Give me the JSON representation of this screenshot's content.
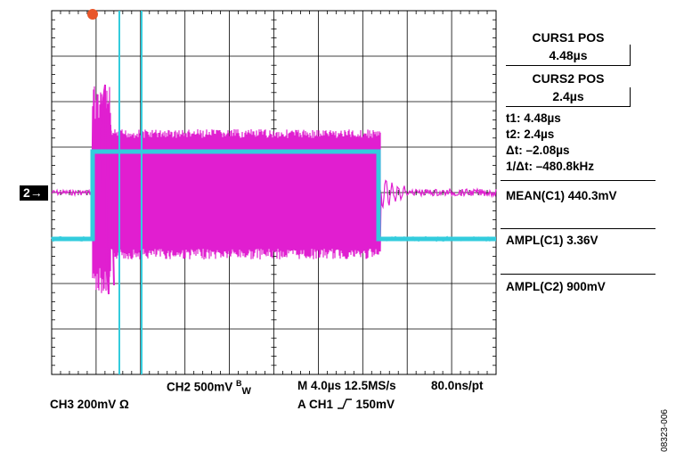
{
  "cursors": {
    "curs1_label": "CURS1 POS",
    "curs1_value": "4.48µs",
    "curs2_label": "CURS2 POS",
    "curs2_value": "2.4µs"
  },
  "measurements": {
    "t1": "t1: 4.48µs",
    "t2": "t2: 2.4µs",
    "delta_t": "Δt: –2.08µs",
    "inv_delta_t": "1/Δt: –480.8kHz",
    "mean_c1": "MEAN(C1)  440.3mV",
    "ampl_c1": "AMPL(C1)  3.36V",
    "ampl_c2": "AMPL(C2)  900mV"
  },
  "bottom": {
    "ch3": "CH3  200mV  Ω",
    "ch2_prefix": "CH2  500mV ",
    "ch2_bw_b": "B",
    "ch2_bw_w": "W",
    "timebase": "M 4.0µs 12.5MS/s",
    "per_point": "80.0ns/pt",
    "trigger_prefix": "A  CH1  ",
    "trigger_level": "150mV"
  },
  "channel_marker": "2→",
  "figure_id": "08323-006",
  "colors": {
    "ch1_trace": "#33CCDD",
    "ch2_trace": "#E01FD0",
    "trigger_marker": "#E8562A",
    "graticule": "#000000"
  }
}
